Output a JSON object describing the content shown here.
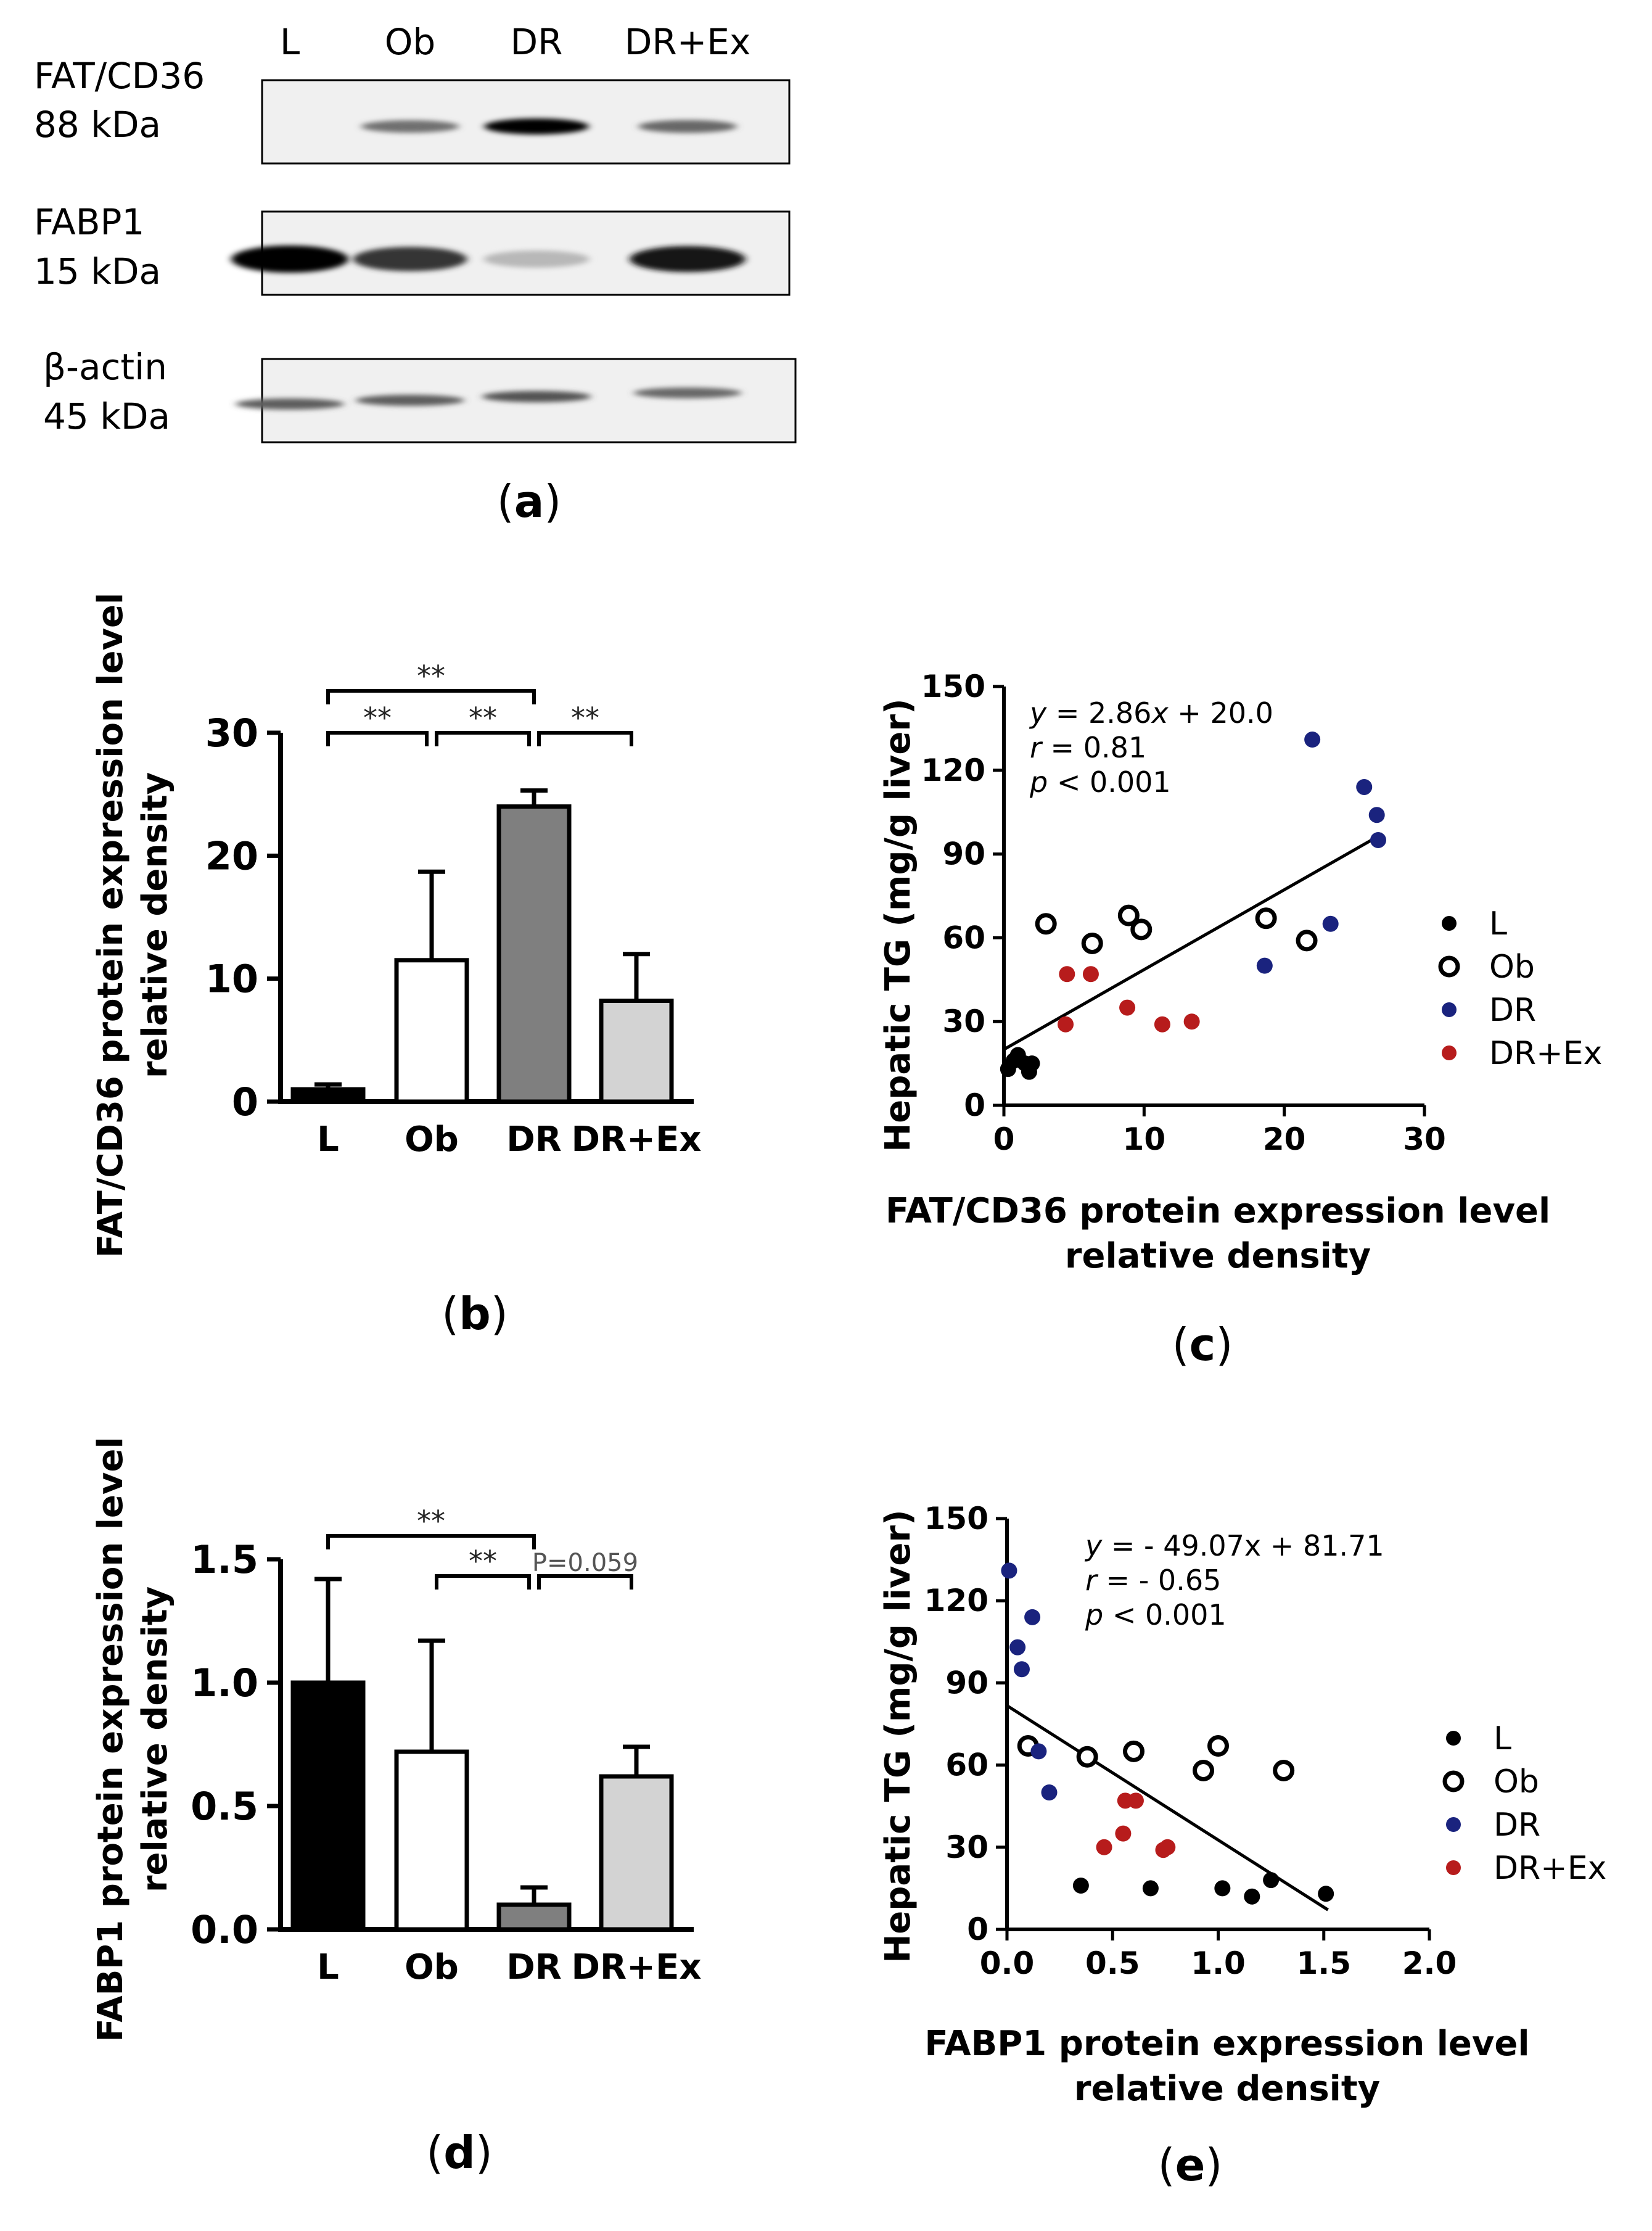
{
  "panel_a": {
    "lanes": [
      "L",
      "Ob",
      "DR",
      "DR+Ex"
    ],
    "blots": [
      {
        "name": "FAT/CD36",
        "size": "88 kDa",
        "intensity": [
          0.0,
          0.45,
          1.0,
          0.5
        ]
      },
      {
        "name": "FABP1",
        "size": "15 kDa",
        "intensity": [
          1.0,
          0.75,
          0.08,
          0.9
        ]
      },
      {
        "name": "β-actin",
        "size": "45 kDa",
        "intensity": [
          0.55,
          0.55,
          0.6,
          0.5
        ]
      }
    ],
    "caption": {
      "open": "(",
      "letter": "a",
      "close": ")"
    }
  },
  "chart_data": [
    {
      "id": "b",
      "type": "bar",
      "caption": {
        "open": "(",
        "letter": "b",
        "close": ")"
      },
      "categories": [
        "L",
        "Ob",
        "DR",
        "DR+Ex"
      ],
      "values": [
        1.0,
        11.5,
        24.0,
        8.2
      ],
      "errors": [
        0.4,
        7.2,
        1.3,
        3.8
      ],
      "colors": [
        "#000000",
        "#ffffff",
        "#7f7f7f",
        "#d3d3d3"
      ],
      "ylabel": [
        "FAT/CD36 protein expression level",
        "relative density"
      ],
      "ylim": [
        0,
        30
      ],
      "yticks": [
        0,
        10,
        20,
        30
      ],
      "ytick_labels": [
        "0",
        "10",
        "20",
        "30"
      ],
      "sig": [
        {
          "from": 0,
          "to": 2,
          "level": 2,
          "label": "**"
        },
        {
          "from": 0,
          "to": 1,
          "level": 1,
          "label": "**"
        },
        {
          "from": 1,
          "to": 2,
          "level": 1,
          "label": "**"
        },
        {
          "from": 2,
          "to": 3,
          "level": 1,
          "label": "**"
        }
      ]
    },
    {
      "id": "c",
      "type": "scatter",
      "caption": {
        "open": "(",
        "letter": "c",
        "close": ")"
      },
      "xlabel": [
        "FAT/CD36 protein expression level",
        "relative density"
      ],
      "ylabel": "Hepatic TG  (mg/g liver)",
      "xlim": [
        0,
        30
      ],
      "ylim": [
        0,
        150
      ],
      "xticks": [
        0,
        10,
        20,
        30
      ],
      "xtick_labels": [
        "0",
        "10",
        "20",
        "30"
      ],
      "yticks": [
        0,
        30,
        60,
        90,
        120,
        150
      ],
      "ytick_labels": [
        "0",
        "30",
        "60",
        "90",
        "120",
        "150"
      ],
      "regression": {
        "slope": 2.86,
        "intercept": 20.0,
        "x_range": [
          0,
          27
        ]
      },
      "annotation": {
        "eq_var": "y",
        "eq_rest": " = 2.86",
        "eq_var2": "x",
        "eq_tail": " + 20.0",
        "r_var": "r",
        "r_rest": " = 0.81",
        "p_var": "p",
        "p_rest": " < 0.001"
      },
      "series": [
        {
          "name": "L",
          "color": "#000000",
          "filled": true,
          "points": [
            [
              0.3,
              13
            ],
            [
              0.7,
              16
            ],
            [
              1.0,
              18
            ],
            [
              1.5,
              15
            ],
            [
              1.8,
              12
            ],
            [
              2.0,
              15
            ]
          ]
        },
        {
          "name": "Ob",
          "color": "#000000",
          "filled": false,
          "points": [
            [
              3.0,
              65
            ],
            [
              6.3,
              58
            ],
            [
              8.9,
              68
            ],
            [
              9.8,
              63
            ],
            [
              18.7,
              67
            ],
            [
              21.6,
              59
            ]
          ]
        },
        {
          "name": "DR",
          "color": "#1a237e",
          "filled": true,
          "points": [
            [
              18.6,
              50
            ],
            [
              22.0,
              131
            ],
            [
              23.3,
              65
            ],
            [
              25.7,
              114
            ],
            [
              26.6,
              104
            ],
            [
              26.7,
              95
            ]
          ]
        },
        {
          "name": "DR+Ex",
          "color": "#b71c1c",
          "filled": true,
          "points": [
            [
              4.4,
              29
            ],
            [
              4.5,
              47
            ],
            [
              6.2,
              47
            ],
            [
              8.8,
              35
            ],
            [
              11.3,
              29
            ],
            [
              13.4,
              30
            ]
          ]
        }
      ]
    },
    {
      "id": "d",
      "type": "bar",
      "caption": {
        "open": "(",
        "letter": "d",
        "close": ")"
      },
      "categories": [
        "L",
        "Ob",
        "DR",
        "DR+Ex"
      ],
      "values": [
        1.0,
        0.72,
        0.1,
        0.62
      ],
      "errors": [
        0.42,
        0.45,
        0.07,
        0.12
      ],
      "colors": [
        "#000000",
        "#ffffff",
        "#7f7f7f",
        "#d3d3d3"
      ],
      "ylabel": [
        "FABP1 protein expression level",
        "relative density"
      ],
      "ylim": [
        0,
        1.5
      ],
      "yticks": [
        0,
        0.5,
        1.0,
        1.5
      ],
      "ytick_labels": [
        "0.0",
        "0.5",
        "1.0",
        "1.5"
      ],
      "sig": [
        {
          "from": 0,
          "to": 2,
          "level": 2,
          "label": "**"
        },
        {
          "from": 1,
          "to": 2,
          "level": 1,
          "label": "**"
        },
        {
          "from": 2,
          "to": 3,
          "level": 1,
          "label": "P=0.059"
        }
      ]
    },
    {
      "id": "e",
      "type": "scatter",
      "caption": {
        "open": "(",
        "letter": "e",
        "close": ")"
      },
      "xlabel": [
        "FABP1 protein expression level",
        "relative density"
      ],
      "ylabel": "Hepatic TG  (mg/g liver)",
      "xlim": [
        0,
        2.0
      ],
      "ylim": [
        0,
        150
      ],
      "xticks": [
        0,
        0.5,
        1.0,
        1.5,
        2.0
      ],
      "xtick_labels": [
        "0.0",
        "0.5",
        "1.0",
        "1.5",
        "2.0"
      ],
      "yticks": [
        0,
        30,
        60,
        90,
        120,
        150
      ],
      "ytick_labels": [
        "0",
        "30",
        "60",
        "90",
        "120",
        "150"
      ],
      "regression": {
        "slope": -49.07,
        "intercept": 81.71,
        "x_range": [
          0,
          1.52
        ]
      },
      "annotation": {
        "eq_var": "y",
        "eq_rest": " = - 49.07x + 81.71",
        "eq_var2": "",
        "eq_tail": "",
        "r_var": "r",
        "r_rest": " = - 0.65",
        "p_var": "p",
        "p_rest": " < 0.001"
      },
      "series": [
        {
          "name": "L",
          "color": "#000000",
          "filled": true,
          "points": [
            [
              0.35,
              16
            ],
            [
              0.68,
              15
            ],
            [
              1.02,
              15
            ],
            [
              1.16,
              12
            ],
            [
              1.25,
              18
            ],
            [
              1.51,
              13
            ]
          ]
        },
        {
          "name": "Ob",
          "color": "#000000",
          "filled": false,
          "points": [
            [
              0.1,
              67
            ],
            [
              0.38,
              63
            ],
            [
              0.6,
              65
            ],
            [
              0.93,
              58
            ],
            [
              1.0,
              67
            ],
            [
              1.31,
              58
            ]
          ]
        },
        {
          "name": "DR",
          "color": "#1a237e",
          "filled": true,
          "points": [
            [
              0.01,
              131
            ],
            [
              0.05,
              103
            ],
            [
              0.07,
              95
            ],
            [
              0.12,
              114
            ],
            [
              0.15,
              65
            ],
            [
              0.2,
              50
            ]
          ]
        },
        {
          "name": "DR+Ex",
          "color": "#b71c1c",
          "filled": true,
          "points": [
            [
              0.46,
              30
            ],
            [
              0.55,
              35
            ],
            [
              0.56,
              47
            ],
            [
              0.61,
              47
            ],
            [
              0.74,
              29
            ],
            [
              0.76,
              30
            ]
          ]
        }
      ]
    }
  ]
}
